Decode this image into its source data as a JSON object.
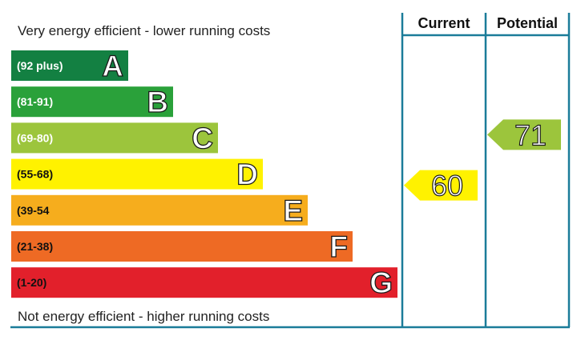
{
  "captions": {
    "top": "Very energy efficient - lower running costs",
    "bottom": "Not energy efficient - higher running costs"
  },
  "columns": {
    "current": "Current",
    "potential": "Potential"
  },
  "chart_data": {
    "type": "bar",
    "categories": [
      "A",
      "B",
      "C",
      "D",
      "E",
      "F",
      "G"
    ],
    "ranges": [
      "(92 plus)",
      "(81-91)",
      "(69-80)",
      "(55-68)",
      "(39-54",
      "(21-38)",
      "(1-20)"
    ],
    "colors": [
      "#138042",
      "#2aa13a",
      "#9cc53c",
      "#fff200",
      "#f6ad1d",
      "#ee6a24",
      "#e2202b"
    ],
    "current": {
      "value": 60,
      "band": "D",
      "color": "#fff200"
    },
    "potential": {
      "value": 71,
      "band": "C",
      "color": "#9cc53c"
    },
    "title": "",
    "xlabel": "",
    "ylabel": ""
  }
}
